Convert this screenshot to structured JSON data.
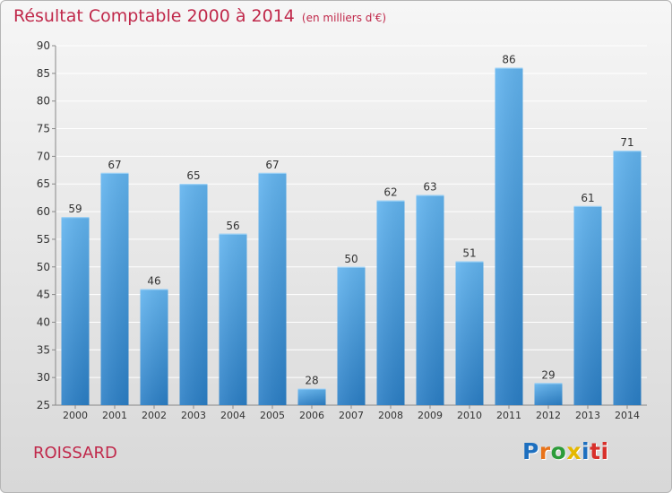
{
  "header": {
    "title": "Résultat Comptable 2000 à 2014",
    "subtitle": "(en milliers d'€)"
  },
  "commune": "ROISSARD",
  "logo": {
    "text": "Proxiti",
    "letters": [
      "P",
      "r",
      "o",
      "x",
      "i",
      "ti"
    ]
  },
  "colors": {
    "accent": "#c0284a",
    "bar_light": "#62b4ef",
    "bar_dark": "#2b7fc6"
  },
  "chart_data": {
    "type": "bar",
    "title": "Résultat Comptable 2000 à 2014",
    "subtitle": "(en milliers d'€)",
    "categories": [
      "2000",
      "2001",
      "2002",
      "2003",
      "2004",
      "2005",
      "2006",
      "2007",
      "2008",
      "2009",
      "2010",
      "2011",
      "2012",
      "2013",
      "2014"
    ],
    "values": [
      59,
      67,
      46,
      65,
      56,
      67,
      28,
      50,
      62,
      63,
      51,
      86,
      29,
      61,
      71
    ],
    "ylim": [
      25,
      90
    ],
    "yticks": [
      25,
      30,
      35,
      40,
      45,
      50,
      55,
      60,
      65,
      70,
      75,
      80,
      85,
      90
    ],
    "grid": true,
    "xlabel": "",
    "ylabel": ""
  }
}
